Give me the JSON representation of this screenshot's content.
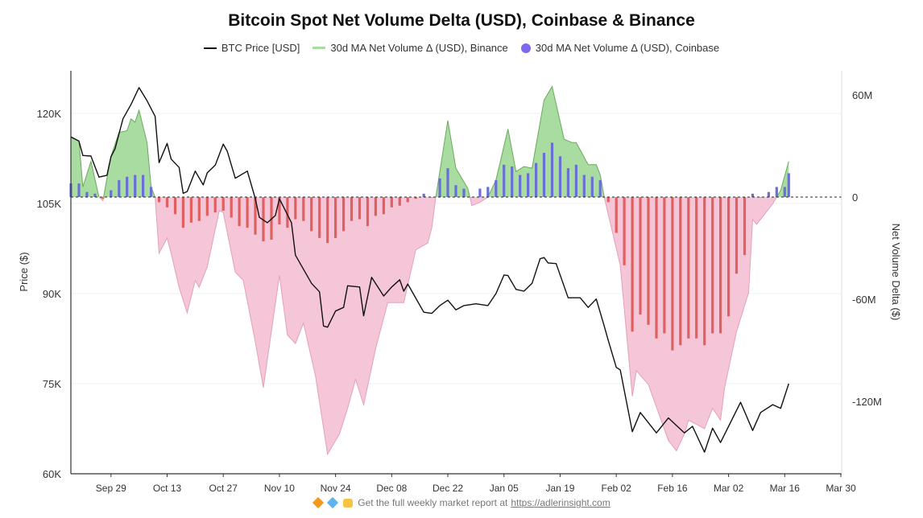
{
  "chart_data": {
    "type": "bar+line+area",
    "title": "Bitcoin Spot Net Volume Delta (USD), Coinbase & Binance",
    "legend": [
      "BTC Price [USD]",
      "30d MA Net Volume Δ (USD), Binance",
      "30d MA Net Volume Δ (USD), Coinbase"
    ],
    "legend_placement": "top",
    "ylabel_left": "Price ($)",
    "ylabel_right": "Net Volume Delta ($)",
    "x_ticks": [
      "Sep 29",
      "Oct 13",
      "Oct 27",
      "Nov 10",
      "Nov 24",
      "Dec 08",
      "Dec 22",
      "Jan 05",
      "Jan 19",
      "Feb 02",
      "Feb 16",
      "Mar 02",
      "Mar 16",
      "Mar 30"
    ],
    "x_range": [
      "Sep 19",
      "Mar 30"
    ],
    "y_left_ticks": [
      {
        "value": 120000,
        "label": "120K"
      },
      {
        "value": 105000,
        "label": "105K"
      },
      {
        "value": 90000,
        "label": "90K"
      },
      {
        "value": 75000,
        "label": "75K"
      },
      {
        "value": 60000,
        "label": "60K"
      }
    ],
    "y_left_range": [
      60000,
      127100
    ],
    "y_right_ticks": [
      {
        "value": 60,
        "label": "60M"
      },
      {
        "value": 0,
        "label": "0"
      },
      {
        "value": -60,
        "label": "-60M"
      },
      {
        "value": -120,
        "label": "-120M"
      }
    ],
    "y_right_range_millions": [
      -162.5,
      74.2
    ],
    "grid": true,
    "colors": {
      "price": "#111111",
      "binance_pos_fill": "#a8dca0",
      "binance_pos_line": "#6aaa5c",
      "binance_neg_fill": "#f5c6d8",
      "binance_neg_line": "#e3a0bc",
      "coinbase_pos": "#6b6fd4",
      "coinbase_neg": "#e06060",
      "legend_coinbase": "#7b68ee"
    },
    "series": [
      {
        "name": "BTC Price [USD]",
        "axis": "left",
        "dates": [
          "Sep 19",
          "Sep 21",
          "Sep 22",
          "Sep 24",
          "Sep 26",
          "Sep 28",
          "Sep 29",
          "Sep 30",
          "Oct 2",
          "Oct 4",
          "Oct 6",
          "Oct 8",
          "Oct 10",
          "Oct 11",
          "Oct 13",
          "Oct 14",
          "Oct 16",
          "Oct 17",
          "Oct 18",
          "Oct 20",
          "Oct 22",
          "Oct 23",
          "Oct 25",
          "Oct 27",
          "Oct 28",
          "Oct 30",
          "Nov 2",
          "Nov 4",
          "Nov 5",
          "Nov 7",
          "Nov 9",
          "Nov 10",
          "Nov 13",
          "Nov 14",
          "Nov 18",
          "Nov 20",
          "Nov 21",
          "Nov 22",
          "Nov 24",
          "Nov 26",
          "Nov 27",
          "Nov 30",
          "Dec 1",
          "Dec 3",
          "Dec 6",
          "Dec 8",
          "Dec 10",
          "Dec 11",
          "Dec 12",
          "Dec 16",
          "Dec 18",
          "Dec 20",
          "Dec 22",
          "Dec 24",
          "Dec 26",
          "Dec 29",
          "Jan 1",
          "Jan 3",
          "Jan 5",
          "Jan 6",
          "Jan 8",
          "Jan 10",
          "Jan 12",
          "Jan 14",
          "Jan 15",
          "Jan 16",
          "Jan 18",
          "Jan 21",
          "Jan 24",
          "Jan 26",
          "Jan 28",
          "Jan 30",
          "Jan 31",
          "Feb 2",
          "Feb 3",
          "Feb 6",
          "Feb 8",
          "Feb 12",
          "Feb 15",
          "Feb 19",
          "Feb 21",
          "Feb 24",
          "Feb 26",
          "Feb 28",
          "Mar 5",
          "Mar 8",
          "Mar 10",
          "Mar 13",
          "Mar 15",
          "Mar 17"
        ],
        "values": [
          116100,
          115400,
          113000,
          112900,
          109400,
          109700,
          112800,
          114100,
          119100,
          121500,
          124300,
          122100,
          119500,
          111800,
          115000,
          112400,
          111000,
          106700,
          107000,
          110400,
          108100,
          110100,
          111400,
          114900,
          113700,
          109200,
          110400,
          105800,
          102700,
          101800,
          103000,
          105800,
          101800,
          96400,
          91700,
          90300,
          84600,
          84400,
          87100,
          87700,
          91300,
          91100,
          86300,
          92700,
          89600,
          91100,
          92300,
          90400,
          91600,
          86900,
          86700,
          88000,
          88900,
          87300,
          88000,
          88300,
          88000,
          90000,
          93100,
          93000,
          90700,
          90400,
          91700,
          95800,
          96000,
          95100,
          95000,
          89300,
          89300,
          87700,
          89100,
          84600,
          82200,
          77700,
          77300,
          67000,
          70200,
          66800,
          69300,
          66800,
          67900,
          63600,
          67600,
          65200,
          71900,
          67200,
          70200,
          71500,
          70900,
          75000
        ]
      },
      {
        "name": "30d MA Net Volume Δ (USD), Binance",
        "axis": "right",
        "unit": "M USD",
        "dates": [
          "Sep 19",
          "Sep 21",
          "Sep 22",
          "Sep 24",
          "Sep 26",
          "Sep 27",
          "Sep 29",
          "Oct 1",
          "Oct 3",
          "Oct 4",
          "Oct 5",
          "Oct 6",
          "Oct 8",
          "Oct 9",
          "Oct 10",
          "Oct 11",
          "Oct 13",
          "Oct 14",
          "Oct 16",
          "Oct 18",
          "Oct 20",
          "Oct 21",
          "Oct 23",
          "Oct 26",
          "Oct 27",
          "Oct 30",
          "Nov 1",
          "Nov 4",
          "Nov 6",
          "Nov 10",
          "Nov 12",
          "Nov 14",
          "Nov 16",
          "Nov 19",
          "Nov 22",
          "Nov 25",
          "Nov 27",
          "Nov 29",
          "Dec 1",
          "Dec 4",
          "Dec 7",
          "Dec 11",
          "Dec 14",
          "Dec 17",
          "Dec 18",
          "Dec 19",
          "Dec 22",
          "Dec 24",
          "Dec 27",
          "Dec 28",
          "Dec 30",
          "Jan 1",
          "Jan 3",
          "Jan 6",
          "Jan 8",
          "Jan 10",
          "Jan 12",
          "Jan 15",
          "Jan 17",
          "Jan 20",
          "Jan 22",
          "Jan 23",
          "Jan 26",
          "Jan 28",
          "Jan 29",
          "Jan 30",
          "Feb 3",
          "Feb 6",
          "Feb 7",
          "Feb 10",
          "Feb 15",
          "Feb 17",
          "Feb 19",
          "Feb 20",
          "Feb 24",
          "Feb 26",
          "Feb 28",
          "Mar 1",
          "Mar 4",
          "Mar 7",
          "Mar 8",
          "Mar 9",
          "Mar 13",
          "Mar 14",
          "Mar 15",
          "Mar 17"
        ],
        "values": [
          35,
          33,
          6,
          21,
          0,
          -2,
          24,
          38,
          39,
          46,
          44,
          51,
          32,
          6,
          0,
          -33,
          -24,
          -33,
          -53,
          -68,
          -49,
          -53,
          -41,
          -8,
          -9,
          -44,
          -49,
          -85,
          -112,
          -46,
          -81,
          -86,
          -74,
          -105,
          -151,
          -139,
          -124,
          -107,
          -122,
          -89,
          -62,
          -62,
          -31,
          -27,
          -18,
          0,
          45,
          17,
          5,
          -5,
          -3,
          0,
          10,
          40,
          15,
          18,
          17,
          57,
          65,
          34,
          32,
          32,
          19,
          19,
          13,
          0,
          -40,
          -117,
          -102,
          -110,
          -143,
          -149,
          -139,
          -131,
          -136,
          -124,
          -131,
          -112,
          -79,
          -56,
          -13,
          -16,
          -4,
          0,
          4,
          21
        ]
      },
      {
        "name": "30d MA Net Volume Δ (USD), Coinbase",
        "axis": "right",
        "unit": "M USD",
        "dates": [
          "Sep 19",
          "Sep 21",
          "Sep 23",
          "Sep 25",
          "Sep 27",
          "Sep 29",
          "Oct 1",
          "Oct 3",
          "Oct 5",
          "Oct 7",
          "Oct 9",
          "Oct 11",
          "Oct 13",
          "Oct 15",
          "Oct 17",
          "Oct 19",
          "Oct 21",
          "Oct 23",
          "Oct 25",
          "Oct 27",
          "Oct 29",
          "Oct 31",
          "Nov 2",
          "Nov 4",
          "Nov 6",
          "Nov 8",
          "Nov 10",
          "Nov 12",
          "Nov 14",
          "Nov 16",
          "Nov 18",
          "Nov 20",
          "Nov 22",
          "Nov 24",
          "Nov 26",
          "Nov 28",
          "Nov 30",
          "Dec 2",
          "Dec 4",
          "Dec 6",
          "Dec 8",
          "Dec 10",
          "Dec 12",
          "Dec 14",
          "Dec 16",
          "Dec 18",
          "Dec 20",
          "Dec 22",
          "Dec 24",
          "Dec 26",
          "Dec 28",
          "Dec 30",
          "Jan 1",
          "Jan 3",
          "Jan 5",
          "Jan 7",
          "Jan 9",
          "Jan 11",
          "Jan 13",
          "Jan 15",
          "Jan 17",
          "Jan 19",
          "Jan 21",
          "Jan 23",
          "Jan 25",
          "Jan 27",
          "Jan 29",
          "Jan 31",
          "Feb 2",
          "Feb 4",
          "Feb 6",
          "Feb 8",
          "Feb 10",
          "Feb 12",
          "Feb 14",
          "Feb 16",
          "Feb 18",
          "Feb 20",
          "Feb 22",
          "Feb 24",
          "Feb 26",
          "Feb 28",
          "Mar 2",
          "Mar 4",
          "Mar 6",
          "Mar 8",
          "Mar 10",
          "Mar 12",
          "Mar 14",
          "Mar 16",
          "Mar 17"
        ],
        "values": [
          8,
          8,
          3,
          2,
          -1,
          4,
          10,
          12,
          13,
          13,
          6,
          -3,
          -6,
          -10,
          -18,
          -15,
          -14,
          -11,
          -9,
          -8,
          -12,
          -17,
          -18,
          -22,
          -26,
          -25,
          -16,
          -18,
          -13,
          -14,
          -20,
          -24,
          -27,
          -24,
          -20,
          -14,
          -13,
          -17,
          -11,
          -10,
          -6,
          -5,
          -3,
          -1,
          2,
          0,
          11,
          17,
          7,
          5,
          0,
          5,
          6,
          10,
          19,
          18,
          13,
          14,
          20,
          26,
          32,
          24,
          17,
          19,
          13,
          12,
          10,
          -3,
          -21,
          -40,
          -79,
          -69,
          -75,
          -83,
          -80,
          -90,
          -87,
          -83,
          -83,
          -87,
          -80,
          -80,
          -70,
          -45,
          -34,
          2,
          0,
          3,
          6,
          6,
          14
        ]
      }
    ]
  },
  "footer": {
    "icons": [
      "orange-diamond-icon",
      "blue-gem-icon",
      "raised-hands-icon"
    ],
    "text": "Get the full weekly market report at",
    "link": "https://adlerinsight.com"
  }
}
